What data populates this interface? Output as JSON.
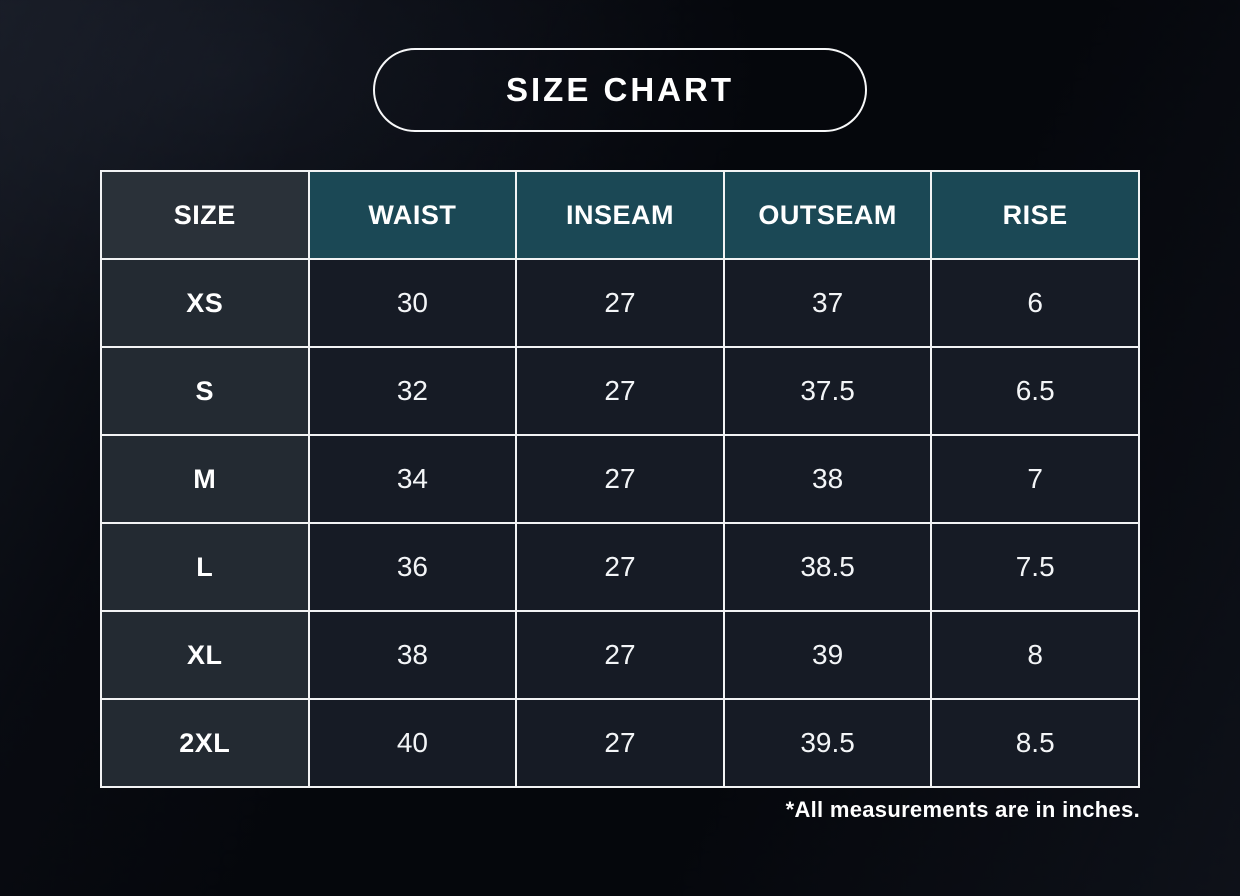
{
  "page": {
    "title": "SIZE CHART",
    "footnote": "*All measurements are in inches."
  },
  "table": {
    "columns": [
      "SIZE",
      "WAIST",
      "INSEAM",
      "OUTSEAM",
      "RISE"
    ],
    "rows": [
      {
        "size": "XS",
        "values": [
          "30",
          "27",
          "37",
          "6"
        ]
      },
      {
        "size": "S",
        "values": [
          "32",
          "27",
          "37.5",
          "6.5"
        ]
      },
      {
        "size": "M",
        "values": [
          "34",
          "27",
          "38",
          "7"
        ]
      },
      {
        "size": "L",
        "values": [
          "36",
          "27",
          "38.5",
          "7.5"
        ]
      },
      {
        "size": "XL",
        "values": [
          "38",
          "27",
          "39",
          "8"
        ]
      },
      {
        "size": "2XL",
        "values": [
          "40",
          "27",
          "39.5",
          "8.5"
        ]
      }
    ]
  },
  "colors": {
    "background": "#05070c",
    "header_teal": "#1b4855",
    "header_dark": "#2a3139",
    "size_column": "#232a32",
    "data_cell": "#161b25",
    "border": "#f2f3f4",
    "text": "#ffffff"
  },
  "chart_data": {
    "type": "table",
    "title": "SIZE CHART",
    "columns": [
      "SIZE",
      "WAIST",
      "INSEAM",
      "OUTSEAM",
      "RISE"
    ],
    "rows": [
      [
        "XS",
        30,
        27,
        37,
        6
      ],
      [
        "S",
        32,
        27,
        37.5,
        6.5
      ],
      [
        "M",
        34,
        27,
        38,
        7
      ],
      [
        "L",
        36,
        27,
        38.5,
        7.5
      ],
      [
        "XL",
        38,
        27,
        39,
        8
      ],
      [
        "2XL",
        40,
        27,
        39.5,
        8.5
      ]
    ],
    "units": "inches",
    "note": "*All measurements are in inches."
  }
}
